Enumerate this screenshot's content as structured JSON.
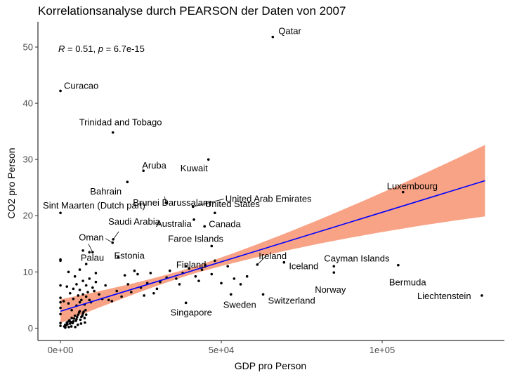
{
  "chart_data": {
    "type": "scatter",
    "title": "Korrelationsanalyse durch PEARSON der Daten von 2007",
    "xlabel": "GDP pro Person",
    "ylabel": "CO2 pro Person",
    "xlim": [
      -7000,
      138000
    ],
    "ylim": [
      -2.2,
      54.5
    ],
    "x_ticks": [
      0,
      50000,
      100000
    ],
    "x_tick_labels": [
      "0e+00",
      "5e+04",
      "1e+05"
    ],
    "y_ticks": [
      0,
      10,
      20,
      30,
      40,
      50
    ],
    "y_tick_labels": [
      "0",
      "10",
      "20",
      "30",
      "40",
      "50"
    ],
    "grid": false,
    "annotation": {
      "r_label": "R",
      "r_value": " = 0.51, ",
      "p_label": "p",
      "p_value": " = 6.7e-15"
    },
    "regression": {
      "intercept": 3.0,
      "slope": 0.000176,
      "x_range": [
        0,
        132000
      ],
      "line_color": "#0000ff",
      "band_color": "#f8a386"
    },
    "labeled_points": [
      {
        "name": "Qatar",
        "x": 66000,
        "y": 51.8
      },
      {
        "name": "Curacao",
        "x": 0,
        "y": 42.2
      },
      {
        "name": "Trinidad and Tobago",
        "x": 16300,
        "y": 34.8
      },
      {
        "name": "Kuwait",
        "x": 46000,
        "y": 30.0
      },
      {
        "name": "Aruba",
        "x": 25800,
        "y": 28.0
      },
      {
        "name": "Bahrain",
        "x": 20800,
        "y": 26.0
      },
      {
        "name": "Brunei Darussalam",
        "x": 32800,
        "y": 22.3
      },
      {
        "name": "United Arab Emirates",
        "x": 41200,
        "y": 21.6
      },
      {
        "name": "Luxembourg",
        "x": 106500,
        "y": 24.2
      },
      {
        "name": "Sint Maarten (Dutch part)",
        "x": 0,
        "y": 20.5
      },
      {
        "name": "Australia",
        "x": 41500,
        "y": 19.3
      },
      {
        "name": "United States",
        "x": 48000,
        "y": 20.5
      },
      {
        "name": "Canada",
        "x": 44800,
        "y": 18.1
      },
      {
        "name": "Saudi Arabia",
        "x": 16400,
        "y": 15.8
      },
      {
        "name": "Oman",
        "x": 16200,
        "y": 15.2
      },
      {
        "name": "Faroe Islands",
        "x": 47000,
        "y": 14.6
      },
      {
        "name": "Estonia",
        "x": 18000,
        "y": 12.6
      },
      {
        "name": "Palau",
        "x": 10000,
        "y": 13.5
      },
      {
        "name": "Ireland",
        "x": 61200,
        "y": 11.3
      },
      {
        "name": "Finland",
        "x": 48000,
        "y": 12.0
      },
      {
        "name": "Iceland",
        "x": 69500,
        "y": 11.7
      },
      {
        "name": "Cayman Islands",
        "x": 85000,
        "y": 11.0
      },
      {
        "name": "Bermuda",
        "x": 105000,
        "y": 11.2
      },
      {
        "name": "Norway",
        "x": 85000,
        "y": 9.9
      },
      {
        "name": "Liechtenstein",
        "x": 131000,
        "y": 5.8
      },
      {
        "name": "Switzerland",
        "x": 63000,
        "y": 6.0
      },
      {
        "name": "Sweden",
        "x": 53000,
        "y": 6.0
      },
      {
        "name": "Singapore",
        "x": 39000,
        "y": 4.5
      }
    ],
    "other_points": [
      [
        0,
        12.2
      ],
      [
        0,
        12.0
      ],
      [
        0,
        7.6
      ],
      [
        0,
        5.4
      ],
      [
        0,
        4.6
      ],
      [
        0,
        3.6
      ],
      [
        0,
        2.5
      ],
      [
        0,
        0.9
      ],
      [
        0,
        0.4
      ],
      [
        1500,
        0.6
      ],
      [
        2000,
        1.0
      ],
      [
        2500,
        1.2
      ],
      [
        3000,
        0.8
      ],
      [
        3500,
        1.8
      ],
      [
        4000,
        1.2
      ],
      [
        4500,
        2.2
      ],
      [
        5000,
        1.6
      ],
      [
        5500,
        2.4
      ],
      [
        6000,
        3.0
      ],
      [
        6500,
        2.0
      ],
      [
        7000,
        2.6
      ],
      [
        7500,
        1.8
      ],
      [
        8000,
        2.4
      ],
      [
        1200,
        0.3
      ],
      [
        1800,
        0.5
      ],
      [
        2200,
        0.7
      ],
      [
        2800,
        1.4
      ],
      [
        3200,
        1.1
      ],
      [
        3800,
        0.9
      ],
      [
        4200,
        1.7
      ],
      [
        4800,
        1.3
      ],
      [
        5200,
        2.0
      ],
      [
        5800,
        2.8
      ],
      [
        6200,
        1.5
      ],
      [
        6800,
        2.2
      ],
      [
        7200,
        2.9
      ],
      [
        7800,
        3.2
      ],
      [
        1000,
        4.8
      ],
      [
        2500,
        4.4
      ],
      [
        3500,
        3.2
      ],
      [
        4000,
        5.2
      ],
      [
        5000,
        4.0
      ],
      [
        5500,
        5.8
      ],
      [
        6000,
        4.6
      ],
      [
        6500,
        5.0
      ],
      [
        7000,
        6.0
      ],
      [
        7500,
        4.2
      ],
      [
        8000,
        5.6
      ],
      [
        8500,
        6.4
      ],
      [
        9000,
        5.0
      ],
      [
        9500,
        4.6
      ],
      [
        2000,
        7.4
      ],
      [
        3000,
        6.2
      ],
      [
        4000,
        7.0
      ],
      [
        5000,
        7.8
      ],
      [
        6000,
        6.8
      ],
      [
        7000,
        8.4
      ],
      [
        8000,
        7.6
      ],
      [
        9000,
        8.8
      ],
      [
        10000,
        7.2
      ],
      [
        10500,
        6.6
      ],
      [
        11000,
        8.2
      ],
      [
        2500,
        10.0
      ],
      [
        4500,
        9.2
      ],
      [
        6000,
        10.4
      ],
      [
        7000,
        13.8
      ],
      [
        8000,
        11.4
      ],
      [
        9000,
        13.5
      ],
      [
        11000,
        9.8
      ],
      [
        12000,
        6.0
      ],
      [
        13000,
        5.2
      ],
      [
        14000,
        7.6
      ],
      [
        15000,
        5.0
      ],
      [
        16000,
        4.8
      ],
      [
        17500,
        6.6
      ],
      [
        19000,
        5.6
      ],
      [
        20000,
        9.4
      ],
      [
        21000,
        7.8
      ],
      [
        22000,
        6.4
      ],
      [
        23000,
        10.2
      ],
      [
        24000,
        9.6
      ],
      [
        25000,
        7.2
      ],
      [
        26000,
        5.8
      ],
      [
        27000,
        8.0
      ],
      [
        28000,
        9.8
      ],
      [
        29000,
        6.2
      ],
      [
        30000,
        7.0
      ],
      [
        31000,
        8.2
      ],
      [
        33000,
        9.0
      ],
      [
        34000,
        10.2
      ],
      [
        36000,
        8.8
      ],
      [
        37000,
        7.8
      ],
      [
        38000,
        9.8
      ],
      [
        39000,
        11.0
      ],
      [
        40000,
        10.6
      ],
      [
        42000,
        9.2
      ],
      [
        43000,
        8.4
      ],
      [
        44000,
        10.4
      ],
      [
        45000,
        11.2
      ],
      [
        47000,
        9.6
      ],
      [
        50000,
        8.0
      ],
      [
        52000,
        11.0
      ],
      [
        54000,
        8.8
      ],
      [
        56000,
        7.8
      ],
      [
        58000,
        9.2
      ],
      [
        1500,
        0.1
      ],
      [
        2600,
        0.2
      ],
      [
        3400,
        0.3
      ],
      [
        4600,
        0.2
      ],
      [
        5400,
        0.6
      ],
      [
        6400,
        0.8
      ],
      [
        7600,
        1.0
      ]
    ]
  }
}
